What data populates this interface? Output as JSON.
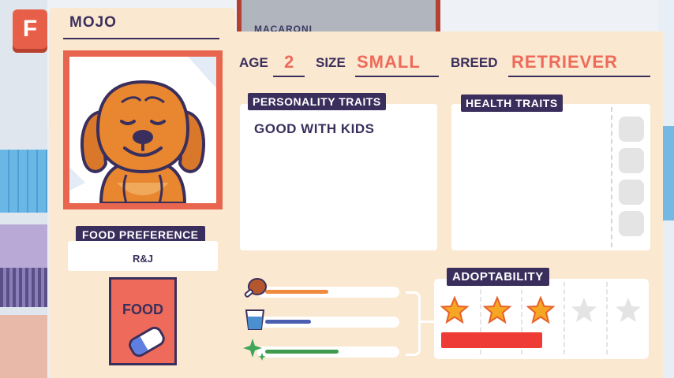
{
  "header": {
    "badge_letter": "F",
    "back_tab_name": "MACARONI"
  },
  "pet": {
    "name": "MOJO",
    "age_label": "AGE",
    "age": "2",
    "size_label": "SIZE",
    "size": "SMALL",
    "breed_label": "BREED",
    "breed": "RETRIEVER"
  },
  "food": {
    "preference_label": "FOOD PREFERENCE",
    "preference_value": "R&J",
    "item_label": "FOOD"
  },
  "personality": {
    "title": "PERSONALITY TRAITS",
    "items": [
      "GOOD WITH KIDS"
    ]
  },
  "health": {
    "title": "HEALTH TRAITS"
  },
  "stats": [
    {
      "icon": "meat-icon",
      "level": 0.5,
      "color": "#f08a3c"
    },
    {
      "icon": "water-icon",
      "level": 0.36,
      "color": "#4a5fb0"
    },
    {
      "icon": "sparkle-icon",
      "level": 0.58,
      "color": "#3f9a4e"
    }
  ],
  "adoptability": {
    "title": "ADOPTABILITY",
    "stars_filled": 3,
    "stars_total": 5,
    "bar_color": "#ee3b35"
  },
  "colors": {
    "accent": "#ee6a5a",
    "ink": "#3a2f5c",
    "card": "#fbe8d0"
  }
}
